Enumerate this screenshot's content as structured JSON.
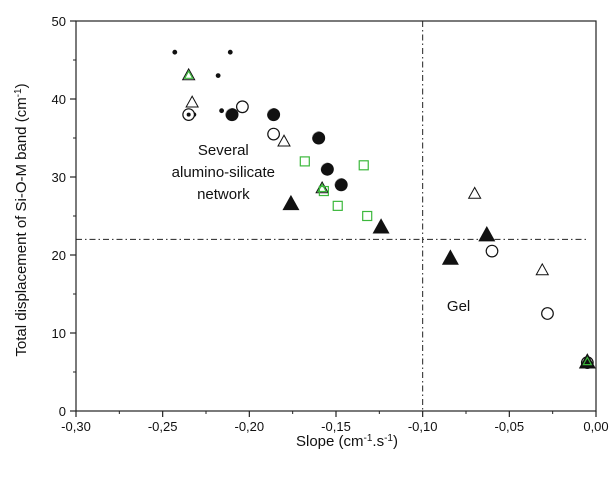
{
  "chart_data": {
    "type": "scatter",
    "xlabel_parts": [
      "Slope (cm",
      "-1",
      ".s",
      "-1",
      ")"
    ],
    "ylabel_parts": [
      "Total displacement of Si-O-M band  (cm",
      "-1",
      ")"
    ],
    "xlim": [
      -0.3,
      0.0
    ],
    "ylim": [
      0,
      50
    ],
    "x_ticks": [
      -0.3,
      -0.25,
      -0.2,
      -0.15,
      -0.1,
      -0.05,
      0.0
    ],
    "x_tick_labels": [
      "-0,30",
      "-0,25",
      "-0,20",
      "-0,15",
      "-0,10",
      "-0,05",
      "0,00"
    ],
    "y_ticks": [
      0,
      10,
      20,
      30,
      40,
      50
    ],
    "y_tick_labels": [
      "0",
      "10",
      "20",
      "30",
      "40",
      "50"
    ],
    "reference_lines": {
      "vertical_x": -0.1,
      "horizontal_y": 22
    },
    "annotations": [
      {
        "lines": [
          "Several",
          "alumino-silicate",
          "network"
        ],
        "x": -0.245,
        "y": 30
      },
      {
        "lines": [
          "Gel"
        ],
        "x": -0.086,
        "y": 10
      }
    ],
    "colors": {
      "green": "#3cb83c",
      "black": "#111111"
    },
    "series": [
      {
        "marker": "dot",
        "points": [
          [
            -0.243,
            46
          ],
          [
            -0.211,
            46
          ],
          [
            -0.218,
            43
          ],
          [
            -0.232,
            38
          ],
          [
            -0.216,
            38.5
          ]
        ]
      },
      {
        "marker": "half-filled-circle",
        "points": [
          [
            -0.21,
            38
          ],
          [
            -0.186,
            38
          ],
          [
            -0.16,
            35
          ],
          [
            -0.155,
            31
          ],
          [
            -0.147,
            29
          ]
        ]
      },
      {
        "marker": "open-circle",
        "points": [
          [
            -0.235,
            38
          ],
          [
            -0.204,
            39
          ],
          [
            -0.186,
            35.5
          ],
          [
            -0.06,
            20.5
          ],
          [
            -0.028,
            12.5
          ],
          [
            -0.005,
            6.2
          ]
        ]
      },
      {
        "marker": "circled-dot",
        "points": [
          [
            -0.235,
            38
          ]
        ]
      },
      {
        "marker": "filled-triangle",
        "points": [
          [
            -0.176,
            26.5
          ],
          [
            -0.124,
            23.5
          ],
          [
            -0.084,
            19.5
          ],
          [
            -0.063,
            22.5
          ],
          [
            -0.005,
            6.2
          ]
        ]
      },
      {
        "marker": "open-triangle",
        "points": [
          [
            -0.235,
            43
          ],
          [
            -0.233,
            39.5
          ],
          [
            -0.18,
            34.5
          ],
          [
            -0.158,
            28.5
          ],
          [
            -0.07,
            27.8
          ],
          [
            -0.031,
            18
          ],
          [
            -0.005,
            6.3
          ]
        ]
      },
      {
        "marker": "green-open-triangle",
        "points": [
          [
            -0.235,
            43
          ],
          [
            -0.158,
            28.5
          ],
          [
            -0.005,
            6.3
          ]
        ]
      },
      {
        "marker": "green-open-square",
        "points": [
          [
            -0.168,
            32
          ],
          [
            -0.149,
            26.3
          ],
          [
            -0.134,
            31.5
          ],
          [
            -0.132,
            25
          ],
          [
            -0.157,
            28.2
          ]
        ]
      }
    ]
  }
}
